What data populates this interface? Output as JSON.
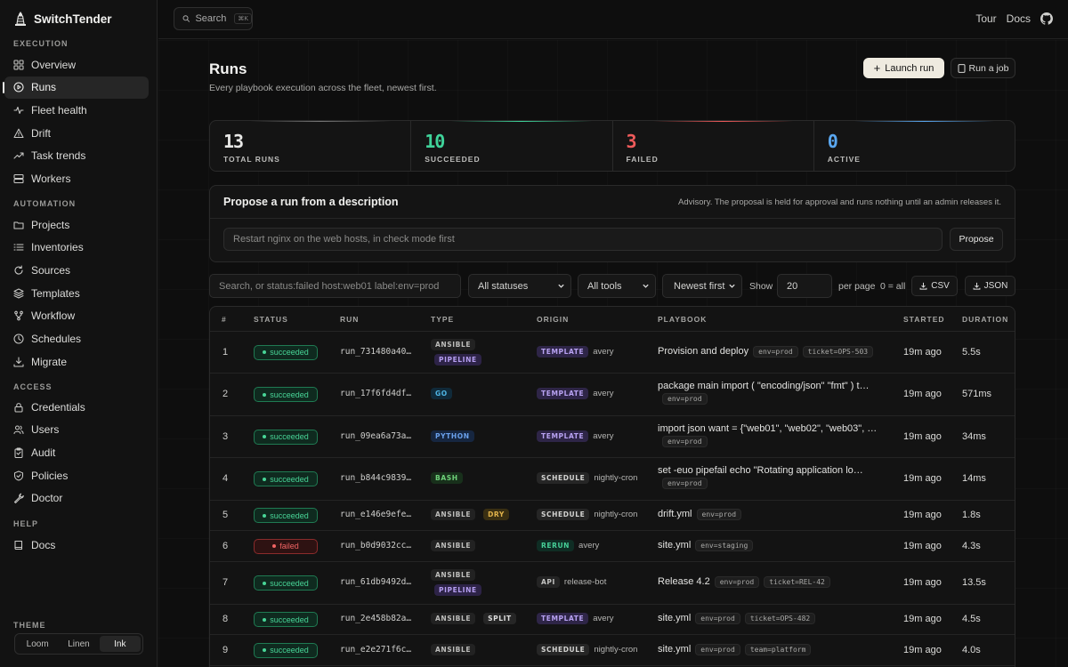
{
  "app": {
    "name": "SwitchTender"
  },
  "sidebar": {
    "sections": [
      {
        "title": "EXECUTION",
        "items": [
          {
            "label": "Overview",
            "icon": "grid-icon"
          },
          {
            "label": "Runs",
            "icon": "play-circle-icon",
            "active": true
          },
          {
            "label": "Fleet health",
            "icon": "pulse-icon"
          },
          {
            "label": "Drift",
            "icon": "warning-triangle-icon"
          },
          {
            "label": "Task trends",
            "icon": "trend-up-icon"
          },
          {
            "label": "Workers",
            "icon": "server-icon"
          }
        ]
      },
      {
        "title": "AUTOMATION",
        "items": [
          {
            "label": "Projects",
            "icon": "folder-icon"
          },
          {
            "label": "Inventories",
            "icon": "list-icon"
          },
          {
            "label": "Sources",
            "icon": "refresh-icon"
          },
          {
            "label": "Templates",
            "icon": "layers-icon"
          },
          {
            "label": "Workflow",
            "icon": "git-branch-icon"
          },
          {
            "label": "Schedules",
            "icon": "clock-icon"
          },
          {
            "label": "Migrate",
            "icon": "download-icon"
          }
        ]
      },
      {
        "title": "ACCESS",
        "items": [
          {
            "label": "Credentials",
            "icon": "lock-icon"
          },
          {
            "label": "Users",
            "icon": "users-icon"
          },
          {
            "label": "Audit",
            "icon": "clipboard-icon"
          },
          {
            "label": "Policies",
            "icon": "shield-icon"
          },
          {
            "label": "Doctor",
            "icon": "wrench-icon"
          }
        ]
      },
      {
        "title": "HELP",
        "items": [
          {
            "label": "Docs",
            "icon": "book-icon"
          }
        ]
      }
    ],
    "theme": {
      "title": "THEME",
      "options": [
        "Loom",
        "Linen",
        "Ink"
      ],
      "selected": "Ink"
    }
  },
  "topbar": {
    "search_label": "Search",
    "search_kbd": "⌘K",
    "links": [
      "Tour",
      "Docs"
    ]
  },
  "page": {
    "title": "Runs",
    "subtitle": "Every playbook execution across the fleet, newest first.",
    "launch_label": "Launch run",
    "runjob_label": "Run a job"
  },
  "stats": [
    {
      "value": "13",
      "label": "TOTAL RUNS",
      "color": "#e8e8e6"
    },
    {
      "value": "10",
      "label": "SUCCEEDED",
      "color": "#3fd39a"
    },
    {
      "value": "3",
      "label": "FAILED",
      "color": "#ef5b5b"
    },
    {
      "value": "0",
      "label": "ACTIVE",
      "color": "#5aa7f0"
    }
  ],
  "propose": {
    "title": "Propose a run from a description",
    "note": "Advisory. The proposal is held for approval and runs nothing until an admin releases it.",
    "placeholder": "Restart nginx on the web hosts, in check mode first",
    "button": "Propose"
  },
  "filters": {
    "search_placeholder": "Search, or status:failed host:web01 label:env=prod",
    "status": "All statuses",
    "tools": "All tools",
    "sort": "Newest first",
    "show_label": "Show",
    "per_page": "20",
    "per_page_label": "per page",
    "all_hint": "0 = all",
    "csv": "CSV",
    "json": "JSON"
  },
  "table": {
    "columns": [
      "#",
      "STATUS",
      "RUN",
      "TYPE",
      "ORIGIN",
      "PLAYBOOK",
      "STARTED",
      "DURATION"
    ],
    "rows": [
      {
        "n": "1",
        "status": "succeeded",
        "run": "run_731480a40…",
        "types": [
          "ANSIBLE",
          "PIPELINE"
        ],
        "origin": "TEMPLATE",
        "who": "avery",
        "playbook": "Provision and deploy",
        "chips": [
          "env=prod",
          "ticket=OPS-503"
        ],
        "started": "19m ago",
        "duration": "5.5s"
      },
      {
        "n": "2",
        "status": "succeeded",
        "run": "run_17f6fd4df…",
        "types": [
          "GO"
        ],
        "origin": "TEMPLATE",
        "who": "avery",
        "playbook": "package main import ( \"encoding/json\" \"fmt\" ) t…",
        "chips": [
          "env=prod"
        ],
        "started": "19m ago",
        "duration": "571ms"
      },
      {
        "n": "3",
        "status": "succeeded",
        "run": "run_09ea6a73a…",
        "types": [
          "PYTHON"
        ],
        "origin": "TEMPLATE",
        "who": "avery",
        "playbook": "import json want = {\"web01\", \"web02\", \"web03\", …",
        "chips": [
          "env=prod"
        ],
        "started": "19m ago",
        "duration": "34ms"
      },
      {
        "n": "4",
        "status": "succeeded",
        "run": "run_b844c9839…",
        "types": [
          "BASH"
        ],
        "origin": "SCHEDULE",
        "who": "nightly-cron",
        "playbook": "set -euo pipefail echo \"Rotating application lo…",
        "chips": [
          "env=prod"
        ],
        "started": "19m ago",
        "duration": "14ms"
      },
      {
        "n": "5",
        "status": "succeeded",
        "run": "run_e146e9efe…",
        "types": [
          "ANSIBLE",
          "DRY"
        ],
        "origin": "SCHEDULE",
        "who": "nightly-cron",
        "playbook": "drift.yml",
        "chips": [
          "env=prod"
        ],
        "started": "19m ago",
        "duration": "1.8s"
      },
      {
        "n": "6",
        "status": "failed",
        "run": "run_b0d9032cc…",
        "types": [
          "ANSIBLE"
        ],
        "origin": "RERUN",
        "who": "avery",
        "playbook": "site.yml",
        "chips": [
          "env=staging"
        ],
        "started": "19m ago",
        "duration": "4.3s"
      },
      {
        "n": "7",
        "status": "succeeded",
        "run": "run_61db9492d…",
        "types": [
          "ANSIBLE",
          "PIPELINE"
        ],
        "origin": "API",
        "who": "release-bot",
        "playbook": "Release 4.2",
        "chips": [
          "env=prod",
          "ticket=REL-42"
        ],
        "started": "19m ago",
        "duration": "13.5s"
      },
      {
        "n": "8",
        "status": "succeeded",
        "run": "run_2e458b82a…",
        "types": [
          "ANSIBLE",
          "SPLIT"
        ],
        "origin": "TEMPLATE",
        "who": "avery",
        "playbook": "site.yml",
        "chips": [
          "env=prod",
          "ticket=OPS-482"
        ],
        "started": "19m ago",
        "duration": "4.5s"
      },
      {
        "n": "9",
        "status": "succeeded",
        "run": "run_e2e271f6c…",
        "types": [
          "ANSIBLE"
        ],
        "origin": "SCHEDULE",
        "who": "nightly-cron",
        "playbook": "site.yml",
        "chips": [
          "env=prod",
          "team=platform"
        ],
        "started": "19m ago",
        "duration": "4.0s"
      }
    ]
  }
}
